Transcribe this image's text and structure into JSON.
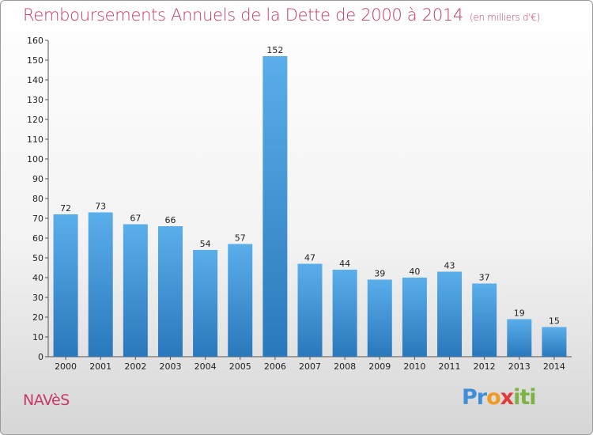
{
  "header": {
    "title": "Remboursements Annuels de la Dette de 2000 à 2014",
    "unit": "(en milliers d'€)"
  },
  "footer": {
    "place": "NAVèS",
    "logo": [
      "Pr",
      "o",
      "x",
      "iti"
    ]
  },
  "colors": {
    "title": "#c8386a",
    "bar_top": "#5aaeea",
    "bar_bottom": "#2a78bc"
  },
  "chart_data": {
    "type": "bar",
    "title": "Remboursements Annuels de la Dette de 2000 à 2014",
    "ylabel": "",
    "xlabel": "",
    "categories": [
      "2000",
      "2001",
      "2002",
      "2003",
      "2004",
      "2005",
      "2006",
      "2007",
      "2008",
      "2009",
      "2010",
      "2011",
      "2012",
      "2013",
      "2014"
    ],
    "values": [
      72,
      73,
      67,
      66,
      54,
      57,
      152,
      47,
      44,
      39,
      40,
      43,
      37,
      19,
      15
    ],
    "ylim": [
      0,
      160
    ],
    "yticks": [
      0,
      10,
      20,
      30,
      40,
      50,
      60,
      70,
      80,
      90,
      100,
      110,
      120,
      130,
      140,
      150,
      160
    ],
    "grid": false,
    "data_labels": true
  }
}
